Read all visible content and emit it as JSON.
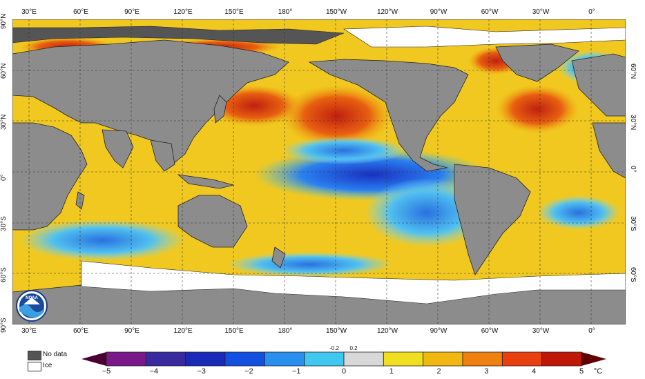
{
  "map": {
    "lon_labels": [
      "30°E",
      "60°E",
      "90°E",
      "120°E",
      "150°E",
      "180°",
      "150°W",
      "120°W",
      "90°W",
      "60°W",
      "30°W",
      "0°"
    ],
    "lat_labels_left": [
      "90°N",
      "60°N",
      "30°N",
      "0°",
      "30°S",
      "60°S",
      "90°S"
    ],
    "lat_labels_right": [
      "60°N",
      "30°N",
      "0°",
      "30°S",
      "60°S"
    ]
  },
  "legend": {
    "no_data_label": "No data",
    "ice_label": "Ice",
    "no_data_color": "#555555",
    "ice_color": "#ffffff"
  },
  "colorbar": {
    "ticks": [
      "−5",
      "−4",
      "−3",
      "−2",
      "−1",
      "0",
      "1",
      "2",
      "3",
      "4",
      "5"
    ],
    "small_ticks": [
      "-0.2",
      "0.2"
    ],
    "unit": "°C",
    "colors": [
      "#4a0030",
      "#7a1a8a",
      "#3a2aa0",
      "#1a2ab8",
      "#1450e0",
      "#2a90f0",
      "#40c8f0",
      "#d8d8d8",
      "#f0e020",
      "#f0b810",
      "#f08010",
      "#e84010",
      "#c01808",
      "#600000"
    ]
  },
  "logo": {
    "text": "NOAA"
  }
}
